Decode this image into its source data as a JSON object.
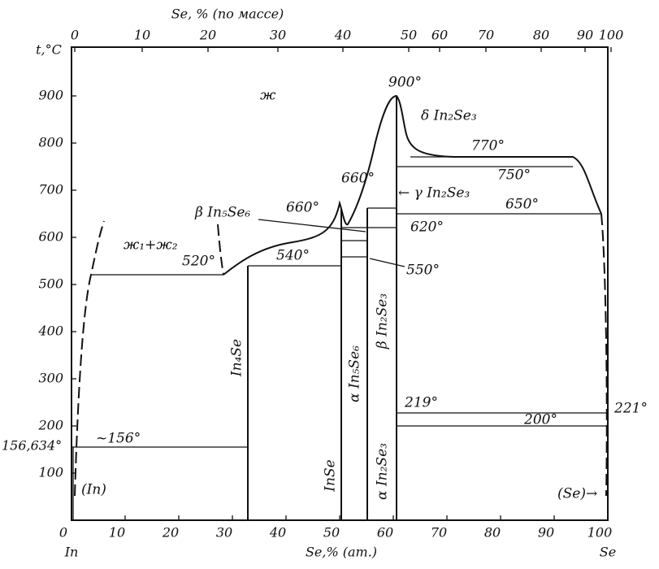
{
  "axes": {
    "top_title": "Se, % (по массе)",
    "top_ticks": [
      "0",
      "10",
      "20",
      "30",
      "40",
      "50",
      "60",
      "70",
      "80",
      "90",
      "100"
    ],
    "left_title": "t,°C",
    "left_ticks": [
      "900",
      "800",
      "700",
      "600",
      "500",
      "400",
      "300",
      "200",
      "100"
    ],
    "bottom_title": "Se,% (ат.)",
    "bottom_ticks": [
      "0",
      "10",
      "20",
      "30",
      "40",
      "50",
      "60",
      "70",
      "80",
      "90",
      "100"
    ],
    "left_end": "In",
    "right_end": "Se"
  },
  "labels": {
    "liquid": "ж",
    "t900": "900°",
    "delta_in2se3": "δ In₂Se₃",
    "t770": "770°",
    "t750": "750°",
    "t660_right": "660°",
    "gamma_in2se3": "← γ In₂Se₃",
    "t650": "650°",
    "t660_left": "660°",
    "beta_in5se6": "β In₅Se₆",
    "t620": "620°",
    "two_liquids": "ж₁+ж₂",
    "t520": "520°",
    "t540": "540°",
    "t550": "550°",
    "in4se": "In₄Se",
    "alpha_in5se6": "α In₅Se₆",
    "beta_in2se3": "β In₂Se₃",
    "inse": "InSe",
    "alpha_in2se3": "α In₂Se₃",
    "t219": "219°",
    "t200": "200°",
    "t221": "221°",
    "t156": "~156°",
    "t156634": "156,634°",
    "in_phase": "(In)",
    "se_phase": "(Se)→"
  }
}
